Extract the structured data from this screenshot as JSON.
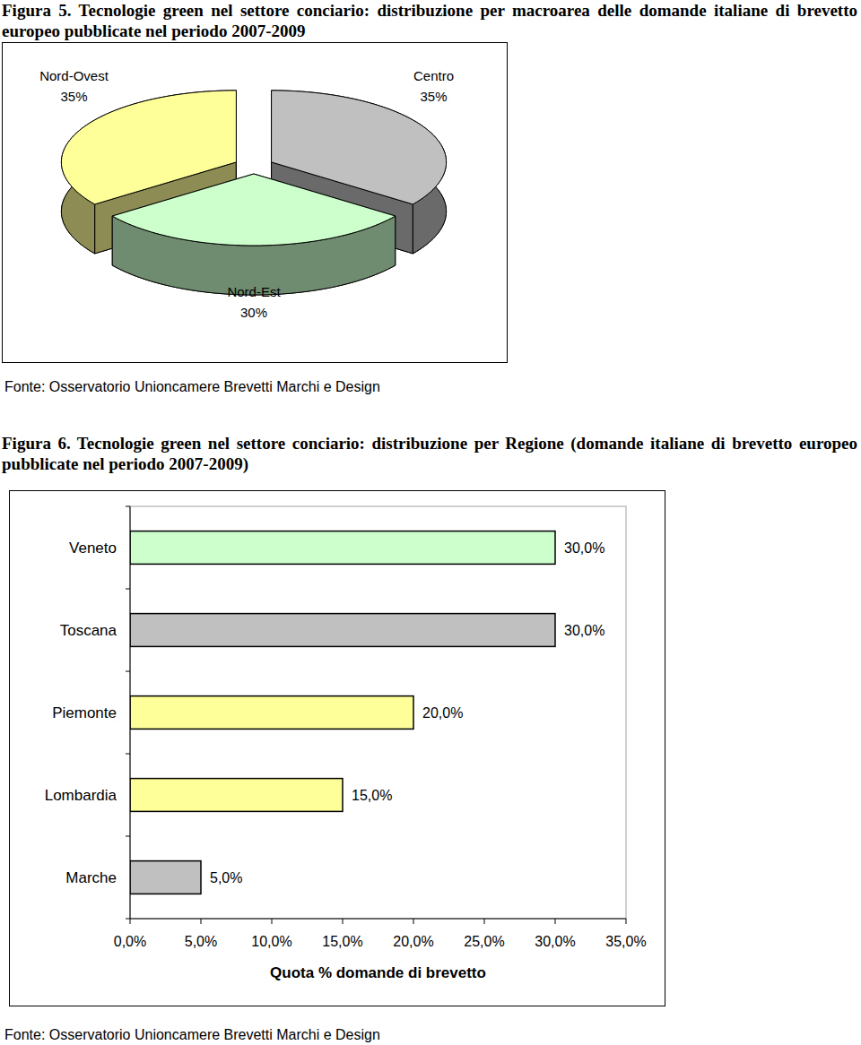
{
  "chart_data": [
    {
      "type": "pie",
      "title": "Figura 5. Tecnologie green nel settore conciario: distribuzione per macroarea delle domande italiane di brevetto europeo pubblicate nel periodo 2007-2009",
      "categories": [
        "Nord-Ovest",
        "Centro",
        "Nord-Est"
      ],
      "values": [
        35,
        35,
        30
      ],
      "value_labels": [
        "35%",
        "35%",
        "30%"
      ],
      "colors": [
        "#ffff99",
        "#c0c0c0",
        "#ccffcc"
      ],
      "data_labels": true,
      "annotations": [
        "Fonte: Osservatorio Unioncamere Brevetti Marchi e Design"
      ]
    },
    {
      "type": "bar",
      "orientation": "horizontal",
      "title": "Figura 6. Tecnologie green nel settore conciario: distribuzione per Regione (domande italiane di brevetto europeo pubblicate nel periodo 2007-2009)",
      "categories": [
        "Veneto",
        "Toscana",
        "Piemonte",
        "Lombardia",
        "Marche"
      ],
      "values": [
        30,
        30,
        20,
        15,
        5
      ],
      "value_labels": [
        "30,0%",
        "30,0%",
        "20,0%",
        "15,0%",
        "5,0%"
      ],
      "colors": [
        "#ccffcc",
        "#c0c0c0",
        "#ffff99",
        "#ffff99",
        "#c0c0c0"
      ],
      "xlim": [
        0,
        35
      ],
      "xticks": [
        {
          "value": 0,
          "label": "0,0%"
        },
        {
          "value": 5,
          "label": "5,0%"
        },
        {
          "value": 10,
          "label": "10,0%"
        },
        {
          "value": 15,
          "label": "15,0%"
        },
        {
          "value": 20,
          "label": "20,0%"
        },
        {
          "value": 25,
          "label": "25,0%"
        },
        {
          "value": 30,
          "label": "30,0%"
        },
        {
          "value": 35,
          "label": "35,0%"
        }
      ],
      "xlabel": "Quota % domande di brevetto",
      "data_labels": true,
      "annotations": [
        "Fonte: Osservatorio Unioncamere Brevetti Marchi e Design"
      ]
    }
  ]
}
